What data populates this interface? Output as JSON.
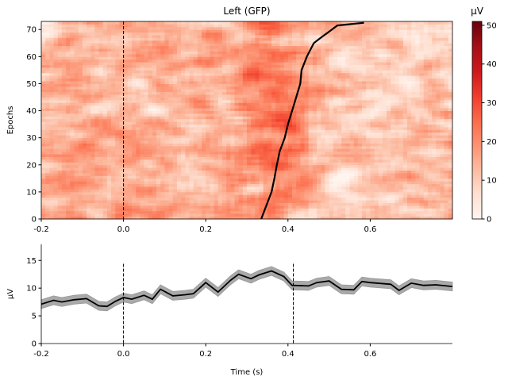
{
  "chart_data": [
    {
      "type": "heatmap",
      "title": "Left (GFP)",
      "xlabel": "",
      "ylabel": "Epochs",
      "xlim": [
        -0.2,
        0.8
      ],
      "ylim": [
        0,
        73
      ],
      "xticks": [
        "-0.2",
        "0.0",
        "0.2",
        "0.4",
        "0.6"
      ],
      "xtick_values": [
        -0.2,
        0.0,
        0.2,
        0.4,
        0.6
      ],
      "yticks": [
        "0",
        "10",
        "20",
        "30",
        "40",
        "50",
        "60",
        "70"
      ],
      "ytick_values": [
        0,
        10,
        20,
        30,
        40,
        50,
        60,
        70
      ],
      "colormap": "Reds",
      "colorbar": {
        "label": "µV",
        "range": [
          0,
          51
        ],
        "ticks": [
          "0",
          "10",
          "20",
          "30",
          "40",
          "50"
        ],
        "tick_values": [
          0,
          10,
          20,
          30,
          40,
          50
        ]
      },
      "typical_value_range": [
        12,
        40
      ],
      "high_activity_window": [
        0.3,
        0.45
      ],
      "stimulus_onset_line": 0.0,
      "sort_line": {
        "color": "#000000",
        "points": [
          [
            0.335,
            0
          ],
          [
            0.34,
            2
          ],
          [
            0.35,
            6
          ],
          [
            0.36,
            10
          ],
          [
            0.367,
            15
          ],
          [
            0.373,
            20
          ],
          [
            0.38,
            25
          ],
          [
            0.392,
            30
          ],
          [
            0.4,
            35
          ],
          [
            0.41,
            40
          ],
          [
            0.42,
            45
          ],
          [
            0.43,
            50
          ],
          [
            0.433,
            55
          ],
          [
            0.446,
            60
          ],
          [
            0.463,
            65
          ],
          [
            0.48,
            67
          ],
          [
            0.507,
            70
          ],
          [
            0.52,
            71.5
          ],
          [
            0.585,
            72.5
          ]
        ]
      }
    },
    {
      "type": "line",
      "xlabel": "Time (s)",
      "ylabel": "µV",
      "xlim": [
        -0.2,
        0.8
      ],
      "ylim": [
        0,
        17.9
      ],
      "xticks": [
        "-0.2",
        "0.0",
        "0.2",
        "0.4",
        "0.6"
      ],
      "xtick_values": [
        -0.2,
        0.0,
        0.2,
        0.4,
        0.6
      ],
      "yticks": [
        "0",
        "5",
        "10",
        "15"
      ],
      "ytick_values": [
        0,
        5,
        10,
        15
      ],
      "vlines": [
        0.0,
        0.413
      ],
      "vline_top": 14.4,
      "line_color": "#000000",
      "band_color": "#a9a9a9",
      "band_halfwidth": 0.8,
      "x": [
        -0.2,
        -0.17,
        -0.15,
        -0.12,
        -0.09,
        -0.06,
        -0.04,
        -0.02,
        0.0,
        0.02,
        0.05,
        0.07,
        0.09,
        0.12,
        0.15,
        0.17,
        0.2,
        0.23,
        0.26,
        0.28,
        0.31,
        0.33,
        0.36,
        0.39,
        0.41,
        0.45,
        0.47,
        0.5,
        0.53,
        0.56,
        0.58,
        0.6,
        0.65,
        0.67,
        0.7,
        0.73,
        0.76,
        0.8
      ],
      "y": [
        7.1,
        7.8,
        7.5,
        7.9,
        8.1,
        6.8,
        6.7,
        7.6,
        8.3,
        8.0,
        8.7,
        8.0,
        9.8,
        8.6,
        8.8,
        9.0,
        11.0,
        9.3,
        11.4,
        12.5,
        11.7,
        12.4,
        13.1,
        12.1,
        10.5,
        10.4,
        11.0,
        11.3,
        9.8,
        9.7,
        11.2,
        11.0,
        10.7,
        9.6,
        10.9,
        10.5,
        10.6,
        10.3
      ]
    }
  ]
}
